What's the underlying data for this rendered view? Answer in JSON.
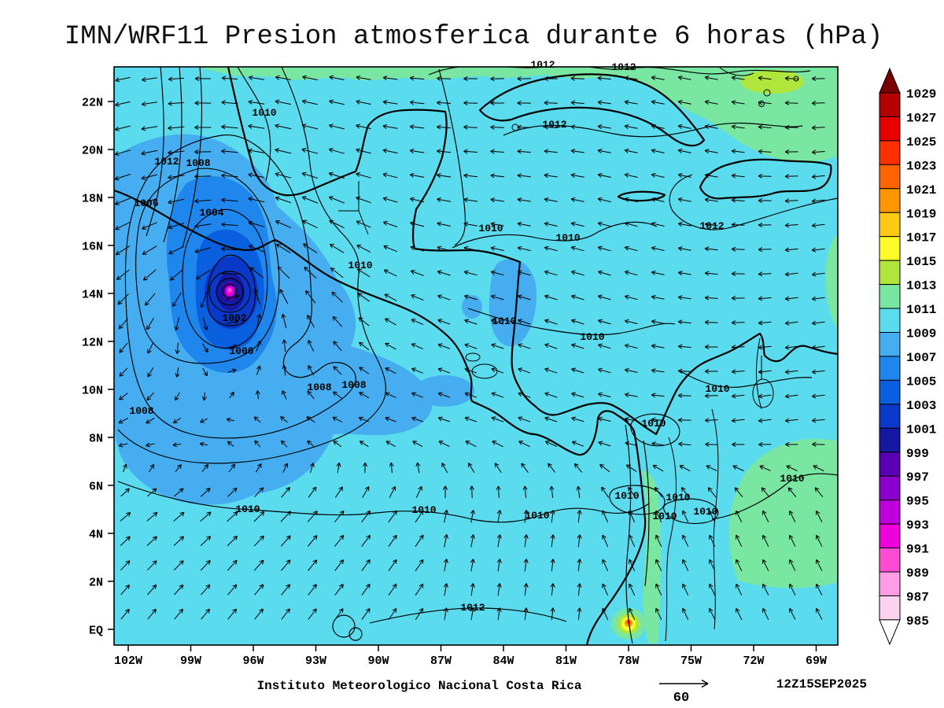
{
  "title": "IMN/WRF11 Presion atmosferica durante 6 horas (hPa)",
  "footer": {
    "institute": "Instituto Meteorologico Nacional Costa Rica",
    "reference_vector_value": "60",
    "valid_time": "12Z15SEP2025"
  },
  "axes": {
    "lat_ticks": [
      {
        "label": "EQ",
        "deg": 0
      },
      {
        "label": "2N",
        "deg": 2
      },
      {
        "label": "4N",
        "deg": 4
      },
      {
        "label": "6N",
        "deg": 6
      },
      {
        "label": "8N",
        "deg": 8
      },
      {
        "label": "10N",
        "deg": 10
      },
      {
        "label": "12N",
        "deg": 12
      },
      {
        "label": "14N",
        "deg": 14
      },
      {
        "label": "16N",
        "deg": 16
      },
      {
        "label": "18N",
        "deg": 18
      },
      {
        "label": "20N",
        "deg": 20
      },
      {
        "label": "22N",
        "deg": 22
      }
    ],
    "lon_ticks": [
      {
        "label": "102W",
        "deg": 102
      },
      {
        "label": "99W",
        "deg": 99
      },
      {
        "label": "96W",
        "deg": 96
      },
      {
        "label": "93W",
        "deg": 93
      },
      {
        "label": "90W",
        "deg": 90
      },
      {
        "label": "87W",
        "deg": 87
      },
      {
        "label": "84W",
        "deg": 84
      },
      {
        "label": "81W",
        "deg": 81
      },
      {
        "label": "78W",
        "deg": 78
      },
      {
        "label": "75W",
        "deg": 75
      },
      {
        "label": "72W",
        "deg": 72
      },
      {
        "label": "69W",
        "deg": 69
      }
    ]
  },
  "colorbar": {
    "tick_labels": [
      "1029",
      "1027",
      "1025",
      "1023",
      "1021",
      "1019",
      "1017",
      "1015",
      "1013",
      "1011",
      "1009",
      "1007",
      "1005",
      "1003",
      "1001",
      "999",
      "997",
      "995",
      "993",
      "991",
      "989",
      "987",
      "985"
    ],
    "colors_top_to_bottom": [
      "#7a0000",
      "#b40000",
      "#e60000",
      "#ff3000",
      "#ff6400",
      "#ff9600",
      "#ffc814",
      "#fffa28",
      "#aee63c",
      "#79e6a1",
      "#5bdbee",
      "#46aef0",
      "#1e86ec",
      "#0a5fde",
      "#0a38c8",
      "#1518a2",
      "#5a00b4",
      "#8c00cc",
      "#be00dc",
      "#ee00dc",
      "#ff4cd2",
      "#ff9ce6",
      "#ffd2f0",
      "#ffffff"
    ]
  },
  "contours": {
    "interval_hPa": 2,
    "labels": {
      "p1002": "1002",
      "p1004": "1004",
      "p1006": "1006",
      "p1008": "1008",
      "p1010": "1010",
      "p1012": "1012"
    }
  },
  "chart_data": {
    "type": "heatmap",
    "title": "IMN/WRF11 Presion atmosferica durante 6 horas (hPa)",
    "variable": "Presion atmosferica (hPa)",
    "valid_time": "12Z15SEP2025",
    "x_axis": {
      "label": "longitude",
      "ticks": [
        "102W",
        "99W",
        "96W",
        "93W",
        "90W",
        "87W",
        "84W",
        "81W",
        "78W",
        "75W",
        "72W",
        "69W"
      ]
    },
    "y_axis": {
      "label": "latitude",
      "ticks": [
        "EQ",
        "2N",
        "4N",
        "6N",
        "8N",
        "10N",
        "12N",
        "14N",
        "16N",
        "18N",
        "20N",
        "22N"
      ]
    },
    "color_scale": {
      "min": 985,
      "max": 1029,
      "step": 2,
      "units": "hPa"
    },
    "contour_interval_hPa": 2,
    "visible_contour_values": [
      1002,
      1004,
      1006,
      1008,
      1010,
      1012
    ],
    "features": [
      {
        "name": "closed-tropical-low",
        "lon": "96.5W",
        "lat": "14N",
        "approx_min_pressure_hPa": 989,
        "circulation": "cyclonic"
      },
      {
        "name": "background-field",
        "approx_pressure_hPa": "1009-1011"
      },
      {
        "name": "higher-pressure-band",
        "location": "northern edge, northeast corner and east of Andes",
        "approx_pressure_hPa": "1011-1015"
      },
      {
        "name": "andes-low-spot",
        "lon": "78W",
        "lat": "EQ",
        "approx_pressure_hPa": "1015-1023"
      }
    ],
    "wind_vectors": {
      "reference_value": 60,
      "style": "arrows"
    }
  }
}
